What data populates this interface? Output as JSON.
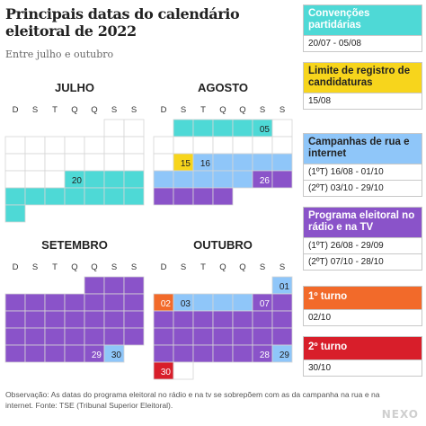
{
  "title": "Principais datas do calendário eleitoral de 2022",
  "subtitle": "Entre julho e outubro",
  "footnote": "Observação: As datas do programa eleitoral no rádio e na tv se sobrepõem com as da campanha na rua e na internet. Fonte: TSE (Tribunal Superior Eleitoral).",
  "logo": "NEXO",
  "colors": {
    "grid": "#d5d5d5",
    "convencoes": "#4ed9d6",
    "registro": "#f7d51c",
    "campanha": "#8fc6f9",
    "programa": "#8a53c9",
    "turno1": "#f26a2a",
    "turno2": "#d81e2a"
  },
  "chart_data": {
    "type": "table",
    "weekday_headers": [
      "D",
      "S",
      "T",
      "Q",
      "Q",
      "S",
      "S"
    ],
    "months": [
      {
        "name": "JULHO",
        "first_weekday": 5,
        "days": 31,
        "highlights": [
          {
            "from": 20,
            "to": 31,
            "category": "convencoes"
          }
        ],
        "labels": [
          {
            "day": 20,
            "text": "20"
          }
        ]
      },
      {
        "name": "AGOSTO",
        "first_weekday": 1,
        "days": 31,
        "highlights": [
          {
            "from": 1,
            "to": 5,
            "category": "convencoes"
          },
          {
            "from": 15,
            "to": 15,
            "category": "registro"
          },
          {
            "from": 16,
            "to": 31,
            "category": "campanha"
          },
          {
            "from": 26,
            "to": 31,
            "category": "programa"
          }
        ],
        "labels": [
          {
            "day": 5,
            "text": "05"
          },
          {
            "day": 15,
            "text": "15"
          },
          {
            "day": 16,
            "text": "16"
          },
          {
            "day": 26,
            "text": "26"
          }
        ]
      },
      {
        "name": "SETEMBRO",
        "first_weekday": 4,
        "days": 30,
        "highlights": [
          {
            "from": 1,
            "to": 29,
            "category": "programa"
          },
          {
            "from": 30,
            "to": 30,
            "category": "campanha"
          }
        ],
        "labels": [
          {
            "day": 29,
            "text": "29"
          },
          {
            "day": 30,
            "text": "30"
          }
        ]
      },
      {
        "name": "OUTUBRO",
        "first_weekday": 6,
        "days": 31,
        "highlights": [
          {
            "from": 1,
            "to": 1,
            "category": "campanha"
          },
          {
            "from": 2,
            "to": 2,
            "category": "turno1"
          },
          {
            "from": 3,
            "to": 29,
            "category": "campanha"
          },
          {
            "from": 7,
            "to": 28,
            "category": "programa"
          },
          {
            "from": 30,
            "to": 30,
            "category": "turno2"
          }
        ],
        "labels": [
          {
            "day": 1,
            "text": "01"
          },
          {
            "day": 2,
            "text": "02"
          },
          {
            "day": 3,
            "text": "03"
          },
          {
            "day": 7,
            "text": "07"
          },
          {
            "day": 28,
            "text": "28"
          },
          {
            "day": 29,
            "text": "29"
          },
          {
            "day": 30,
            "text": "30"
          }
        ]
      }
    ],
    "legend": [
      {
        "key": "convencoes",
        "label": "Convenções partidárias",
        "dates": [
          "20/07 - 05/08"
        ]
      },
      {
        "key": "registro",
        "label": "Limite de registro de candidaturas",
        "dates": [
          "15/08"
        ]
      },
      {
        "key": "campanha",
        "label": "Campanhas de rua e internet",
        "dates": [
          "(1ºT) 16/08 - 01/10",
          "(2ºT) 03/10 - 29/10"
        ]
      },
      {
        "key": "programa",
        "label": "Programa eleitoral no rádio e na TV",
        "dates": [
          "(1ºT) 26/08 - 29/09",
          "(2ºT) 07/10 - 28/10"
        ]
      },
      {
        "key": "turno1",
        "label": "1º turno",
        "dates": [
          "02/10"
        ]
      },
      {
        "key": "turno2",
        "label": "2º turno",
        "dates": [
          "30/10"
        ]
      }
    ]
  }
}
